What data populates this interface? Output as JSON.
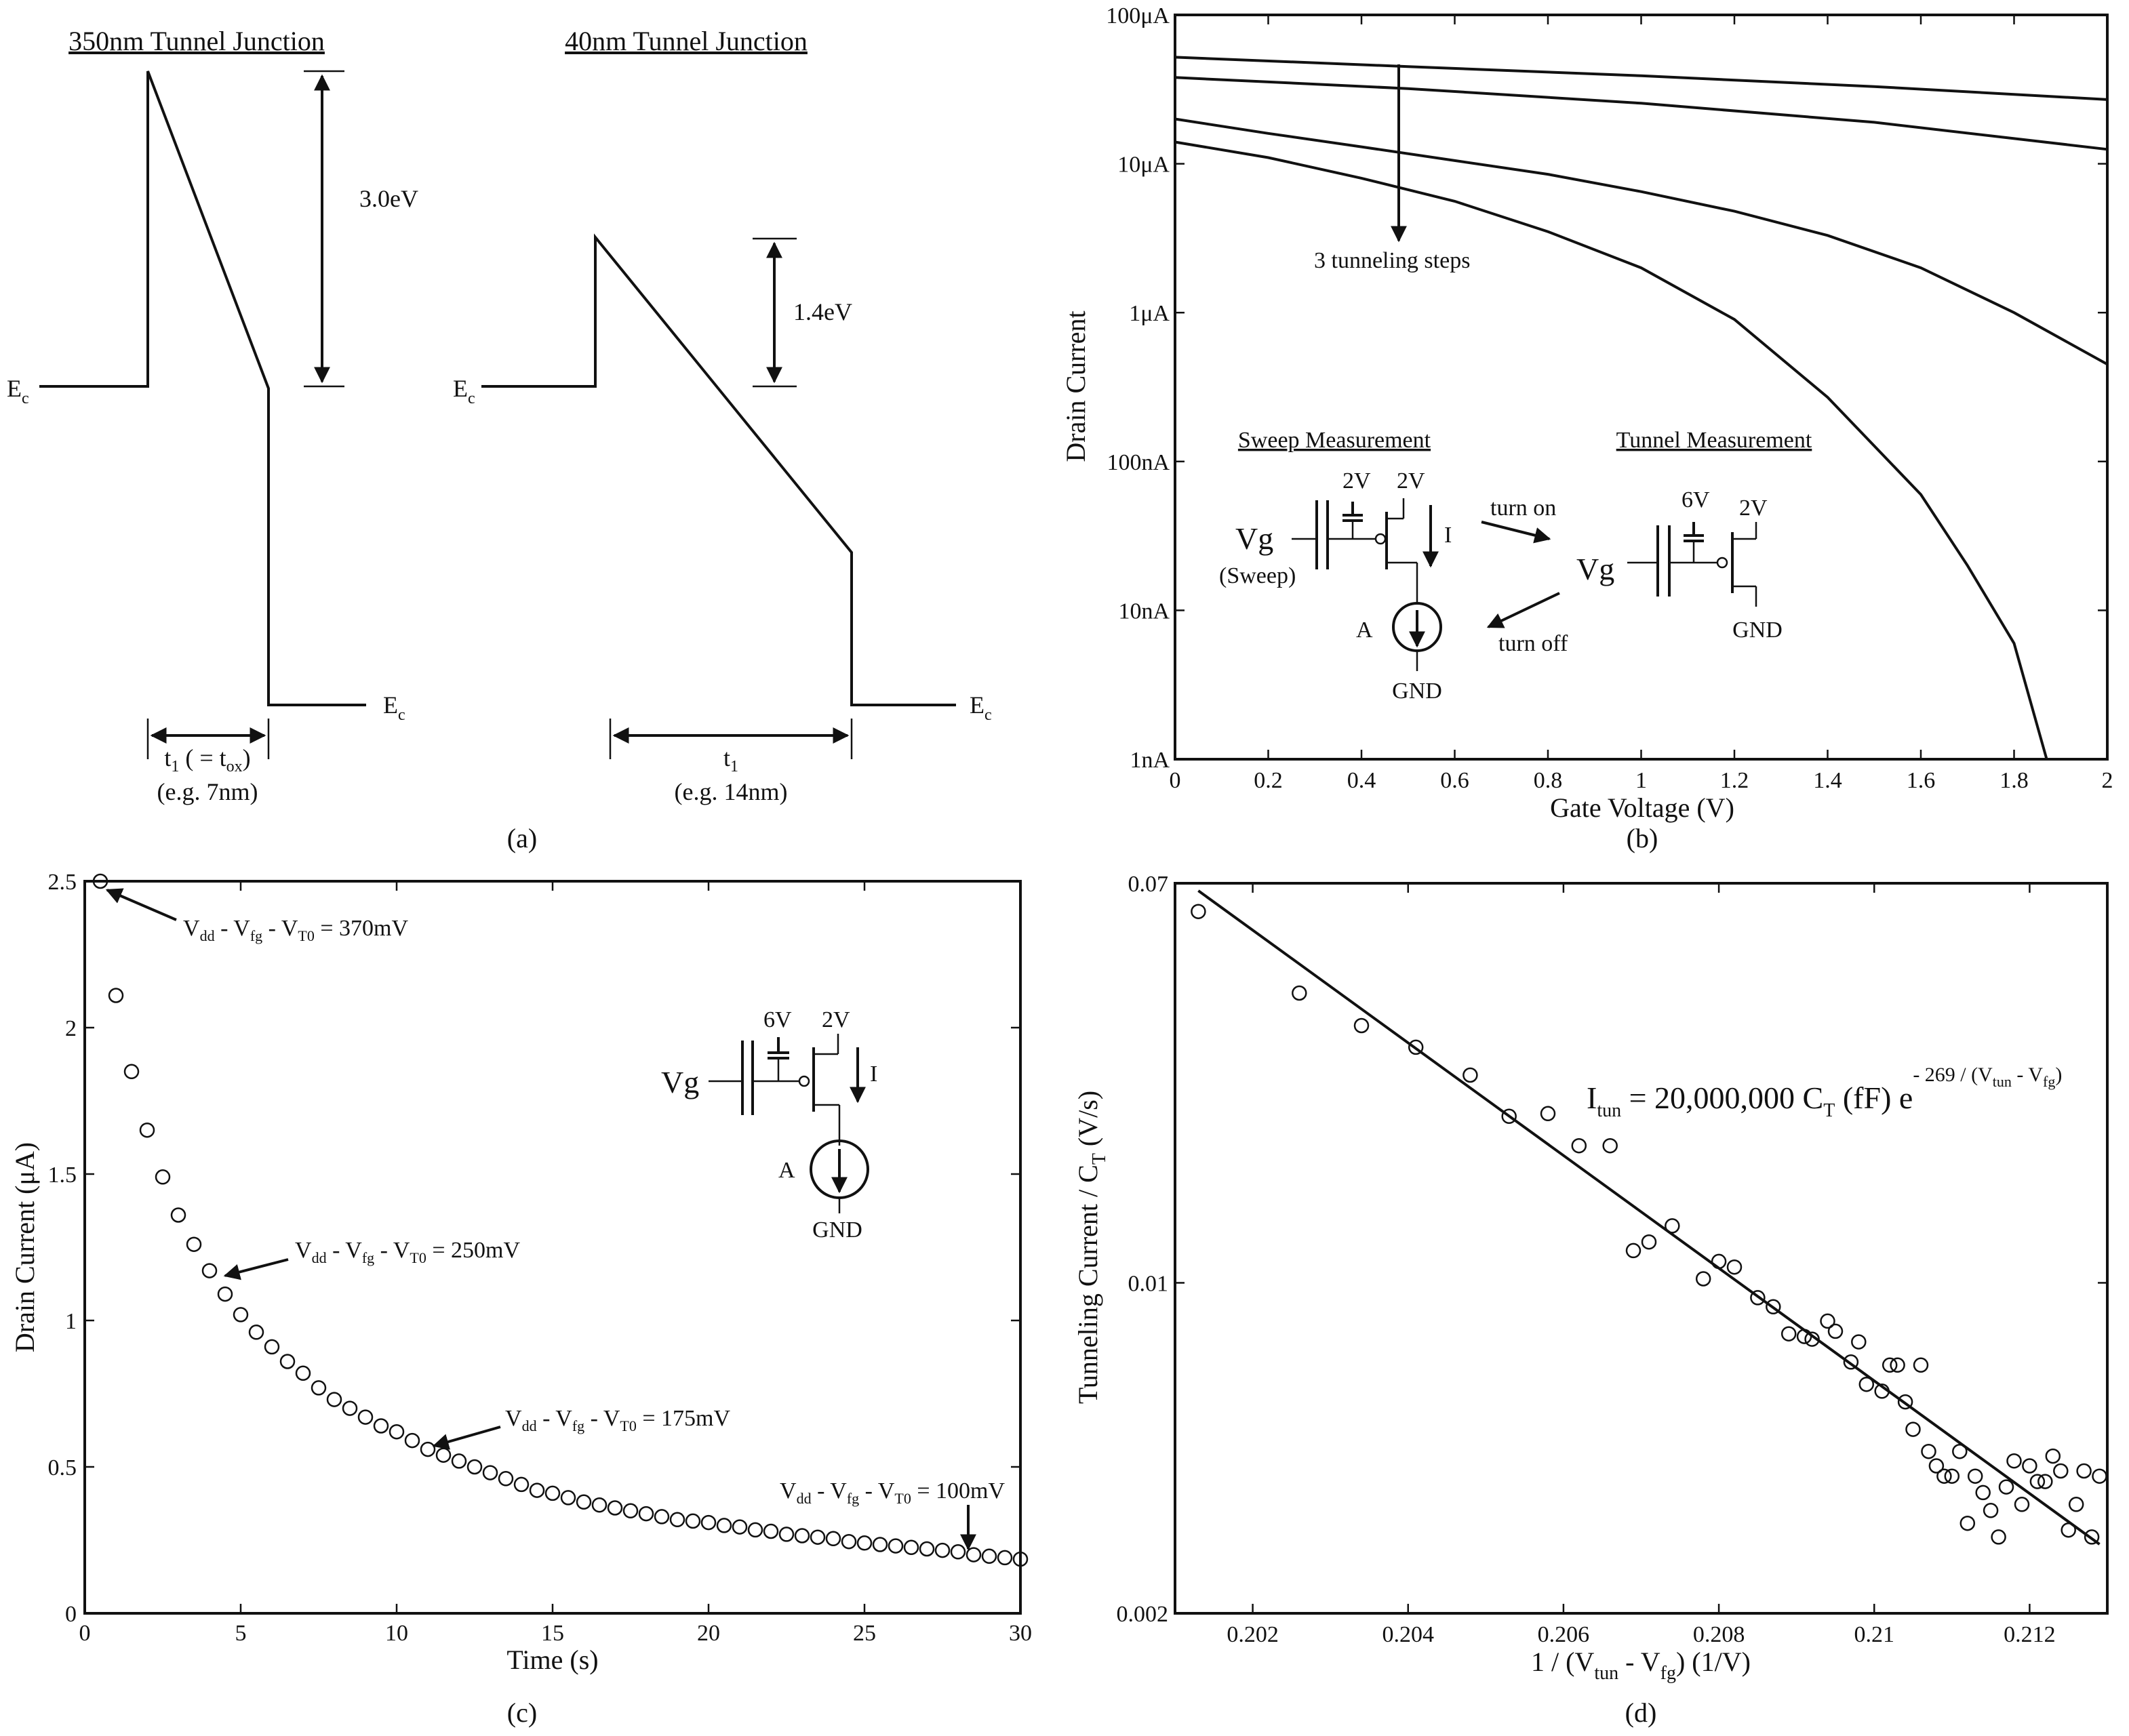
{
  "panel_a": {
    "left_title": "350nm Tunnel Junction",
    "right_title": "40nm Tunnel Junction",
    "ec": "E",
    "ec_sub": "c",
    "left_barrier": "3.0eV",
    "right_barrier": "1.4eV",
    "left_t1": "t",
    "left_t1_sub": "1",
    "left_t1_rest": " ( = t",
    "left_t1_sub2": "ox",
    "left_t1_close": ")",
    "left_example": "(e.g. 7nm)",
    "right_t1": "t",
    "right_t1_sub": "1",
    "right_example": "(e.g. 14nm)",
    "caption": "(a)"
  },
  "panel_b": {
    "caption": "(b)",
    "sweep_title": "Sweep Measurement",
    "tunnel_title": "Tunnel Measurement",
    "v2a": "2V",
    "v2b": "2V",
    "v2c": "2V",
    "v6": "6V",
    "vg": "Vg",
    "vg2": "Vg",
    "sweep": "(Sweep)",
    "I": "I",
    "A": "A",
    "gnd": "GND",
    "gnd2": "GND",
    "turn_on": "turn on",
    "turn_off": "turn off",
    "steps": "3 tunneling steps"
  },
  "panel_c": {
    "caption": "(c)",
    "v6": "6V",
    "v2": "2V",
    "vg": "Vg",
    "I": "I",
    "A": "A",
    "gnd": "GND",
    "ann": [
      {
        "pre": "V",
        "s1": "dd",
        "m": " - V",
        "s2": "fg",
        "m2": " - V",
        "s3": "T0",
        "post": " = 370mV"
      },
      {
        "pre": "V",
        "s1": "dd",
        "m": " - V",
        "s2": "fg",
        "m2": " - V",
        "s3": "T0",
        "post": " = 250mV"
      },
      {
        "pre": "V",
        "s1": "dd",
        "m": " - V",
        "s2": "fg",
        "m2": " - V",
        "s3": "T0",
        "post": " = 175mV"
      },
      {
        "pre": "V",
        "s1": "dd",
        "m": " - V",
        "s2": "fg",
        "m2": " - V",
        "s3": "T0",
        "post": " = 100mV"
      }
    ]
  },
  "panel_d": {
    "caption": "(d)",
    "eq_I": "I",
    "eq_tun": "tun",
    "eq_mid": " = 20,000,000 C",
    "eq_T": "T",
    "eq_ff": " (fF) e",
    "eq_exp": "- 269 / (V",
    "eq_exp_tun": "tun",
    "eq_exp_mid": " - V",
    "eq_exp_fg": "fg",
    "eq_exp_close": ")",
    "ylabel_pre": "Tunneling Current / C",
    "ylabel_sub": "T",
    "ylabel_post": " (V/s)",
    "xlabel_pre": "1 / (V",
    "xlabel_sub1": "tun",
    "xlabel_mid": " - V",
    "xlabel_sub2": "fg",
    "xlabel_post": ")  (1/V)"
  },
  "chart_data": [
    {
      "id": "b",
      "type": "line",
      "title": "",
      "xlabel": "Gate Voltage (V)",
      "ylabel": "Drain Current",
      "xlim": [
        0,
        2
      ],
      "ylim_log10": [
        -9,
        -4
      ],
      "x_ticks": [
        "0",
        "0.2",
        "0.4",
        "0.6",
        "0.8",
        "1",
        "1.2",
        "1.4",
        "1.6",
        "1.8",
        "2"
      ],
      "y_ticks": [
        {
          "label": "1nA",
          "value": 1e-09
        },
        {
          "label": "10nA",
          "value": 1e-08
        },
        {
          "label": "100nA",
          "value": 1e-07
        },
        {
          "label": "1μA",
          "value": 1e-06
        },
        {
          "label": "10μA",
          "value": 1e-05
        },
        {
          "label": "100μA",
          "value": 0.0001
        }
      ],
      "series": [
        {
          "name": "curve 1",
          "x": [
            0,
            0.5,
            1,
            1.5,
            2
          ],
          "y": [
            5.2e-05,
            4.5e-05,
            3.9e-05,
            3.3e-05,
            2.7e-05
          ]
        },
        {
          "name": "curve 2",
          "x": [
            0,
            0.5,
            1,
            1.5,
            2
          ],
          "y": [
            3.8e-05,
            3.2e-05,
            2.55e-05,
            1.9e-05,
            1.25e-05
          ]
        },
        {
          "name": "curve 3",
          "x": [
            0,
            0.2,
            0.4,
            0.6,
            0.8,
            1,
            1.2,
            1.4,
            1.6,
            1.8,
            2
          ],
          "y": [
            2e-05,
            1.6e-05,
            1.3e-05,
            1.05e-05,
            8.5e-06,
            6.5e-06,
            4.8e-06,
            3.3e-06,
            2e-06,
            1e-06,
            4.5e-07
          ]
        },
        {
          "name": "curve 4",
          "x": [
            0,
            0.2,
            0.4,
            0.6,
            0.8,
            1,
            1.2,
            1.4,
            1.6,
            1.7,
            1.8,
            1.87
          ],
          "y": [
            1.4e-05,
            1.1e-05,
            8e-06,
            5.6e-06,
            3.5e-06,
            2e-06,
            9e-07,
            2.7e-07,
            6e-08,
            2e-08,
            6e-09,
            1e-09
          ]
        }
      ]
    },
    {
      "id": "c",
      "type": "scatter",
      "title": "",
      "xlabel": "Time (s)",
      "ylabel": "Drain Current (μA)",
      "xlim": [
        0,
        30
      ],
      "ylim": [
        0,
        2.5
      ],
      "x_ticks": [
        "0",
        "5",
        "10",
        "15",
        "20",
        "25",
        "30"
      ],
      "y_ticks": [
        "0",
        "0.5",
        "1",
        "1.5",
        "2",
        "2.5"
      ],
      "x": [
        0.5,
        1,
        1.5,
        2,
        2.5,
        3,
        3.5,
        4,
        4.5,
        5,
        5.5,
        6,
        6.5,
        7,
        7.5,
        8,
        8.5,
        9,
        9.5,
        10,
        10.5,
        11,
        11.5,
        12,
        12.5,
        13,
        13.5,
        14,
        14.5,
        15,
        15.5,
        16,
        16.5,
        17,
        17.5,
        18,
        18.5,
        19,
        19.5,
        20,
        20.5,
        21,
        21.5,
        22,
        22.5,
        23,
        23.5,
        24,
        24.5,
        25,
        25.5,
        26,
        26.5,
        27,
        27.5,
        28,
        28.5,
        29,
        29.5,
        30
      ],
      "y": [
        2.5,
        2.11,
        1.85,
        1.65,
        1.49,
        1.36,
        1.26,
        1.17,
        1.09,
        1.02,
        0.96,
        0.91,
        0.86,
        0.82,
        0.77,
        0.73,
        0.7,
        0.67,
        0.64,
        0.62,
        0.59,
        0.56,
        0.54,
        0.52,
        0.5,
        0.48,
        0.46,
        0.44,
        0.42,
        0.41,
        0.395,
        0.38,
        0.37,
        0.36,
        0.35,
        0.34,
        0.33,
        0.32,
        0.315,
        0.31,
        0.3,
        0.295,
        0.285,
        0.28,
        0.27,
        0.265,
        0.26,
        0.255,
        0.245,
        0.24,
        0.235,
        0.23,
        0.225,
        0.22,
        0.215,
        0.21,
        0.2,
        0.195,
        0.19,
        0.185
      ]
    },
    {
      "id": "d",
      "type": "scatter",
      "title": "",
      "xlabel": "1 / (Vtun - Vfg)  (1/V)",
      "ylabel": "Tunneling Current / CT (V/s)",
      "xlim": [
        0.201,
        0.213
      ],
      "ylim_log10": [
        -2.69897,
        -1.1549
      ],
      "x_ticks": [
        "0.202",
        "0.204",
        "0.206",
        "0.208",
        "0.21",
        "0.212"
      ],
      "y_ticks": [
        {
          "label": "0.002",
          "value": 0.002
        },
        {
          "label": "0.01",
          "value": 0.01
        },
        {
          "label": "0.07",
          "value": 0.07
        }
      ],
      "fit": {
        "x": [
          0.2013,
          0.2129
        ],
        "y": [
          0.0675,
          0.0028
        ]
      },
      "x": [
        0.2013,
        0.2026,
        0.2034,
        0.2041,
        0.2048,
        0.2053,
        0.2058,
        0.2062,
        0.2066,
        0.2069,
        0.2071,
        0.2074,
        0.2078,
        0.208,
        0.2082,
        0.2085,
        0.2087,
        0.2089,
        0.2091,
        0.2092,
        0.2094,
        0.2095,
        0.2097,
        0.2098,
        0.2099,
        0.2101,
        0.2102,
        0.2103,
        0.2104,
        0.2105,
        0.2106,
        0.2107,
        0.2108,
        0.2109,
        0.211,
        0.2111,
        0.2112,
        0.2113,
        0.2114,
        0.2115,
        0.2116,
        0.2117,
        0.2118,
        0.2119,
        0.212,
        0.2121,
        0.2122,
        0.2123,
        0.2124,
        0.2125,
        0.2126,
        0.2127,
        0.2128,
        0.2129
      ],
      "y": [
        0.061,
        0.041,
        0.035,
        0.0315,
        0.0275,
        0.0225,
        0.0228,
        0.0195,
        0.0195,
        0.0117,
        0.0122,
        0.0132,
        0.0102,
        0.0111,
        0.0108,
        0.0093,
        0.0089,
        0.0078,
        0.0077,
        0.0076,
        0.0083,
        0.0079,
        0.0068,
        0.0075,
        0.0061,
        0.0059,
        0.0067,
        0.0067,
        0.0056,
        0.0049,
        0.0067,
        0.0044,
        0.0041,
        0.0039,
        0.0039,
        0.0044,
        0.0031,
        0.0039,
        0.0036,
        0.0033,
        0.0029,
        0.0037,
        0.0042,
        0.0034,
        0.0041,
        0.0038,
        0.0038,
        0.0043,
        0.004,
        0.003,
        0.0034,
        0.004,
        0.0029,
        0.0039
      ]
    }
  ]
}
